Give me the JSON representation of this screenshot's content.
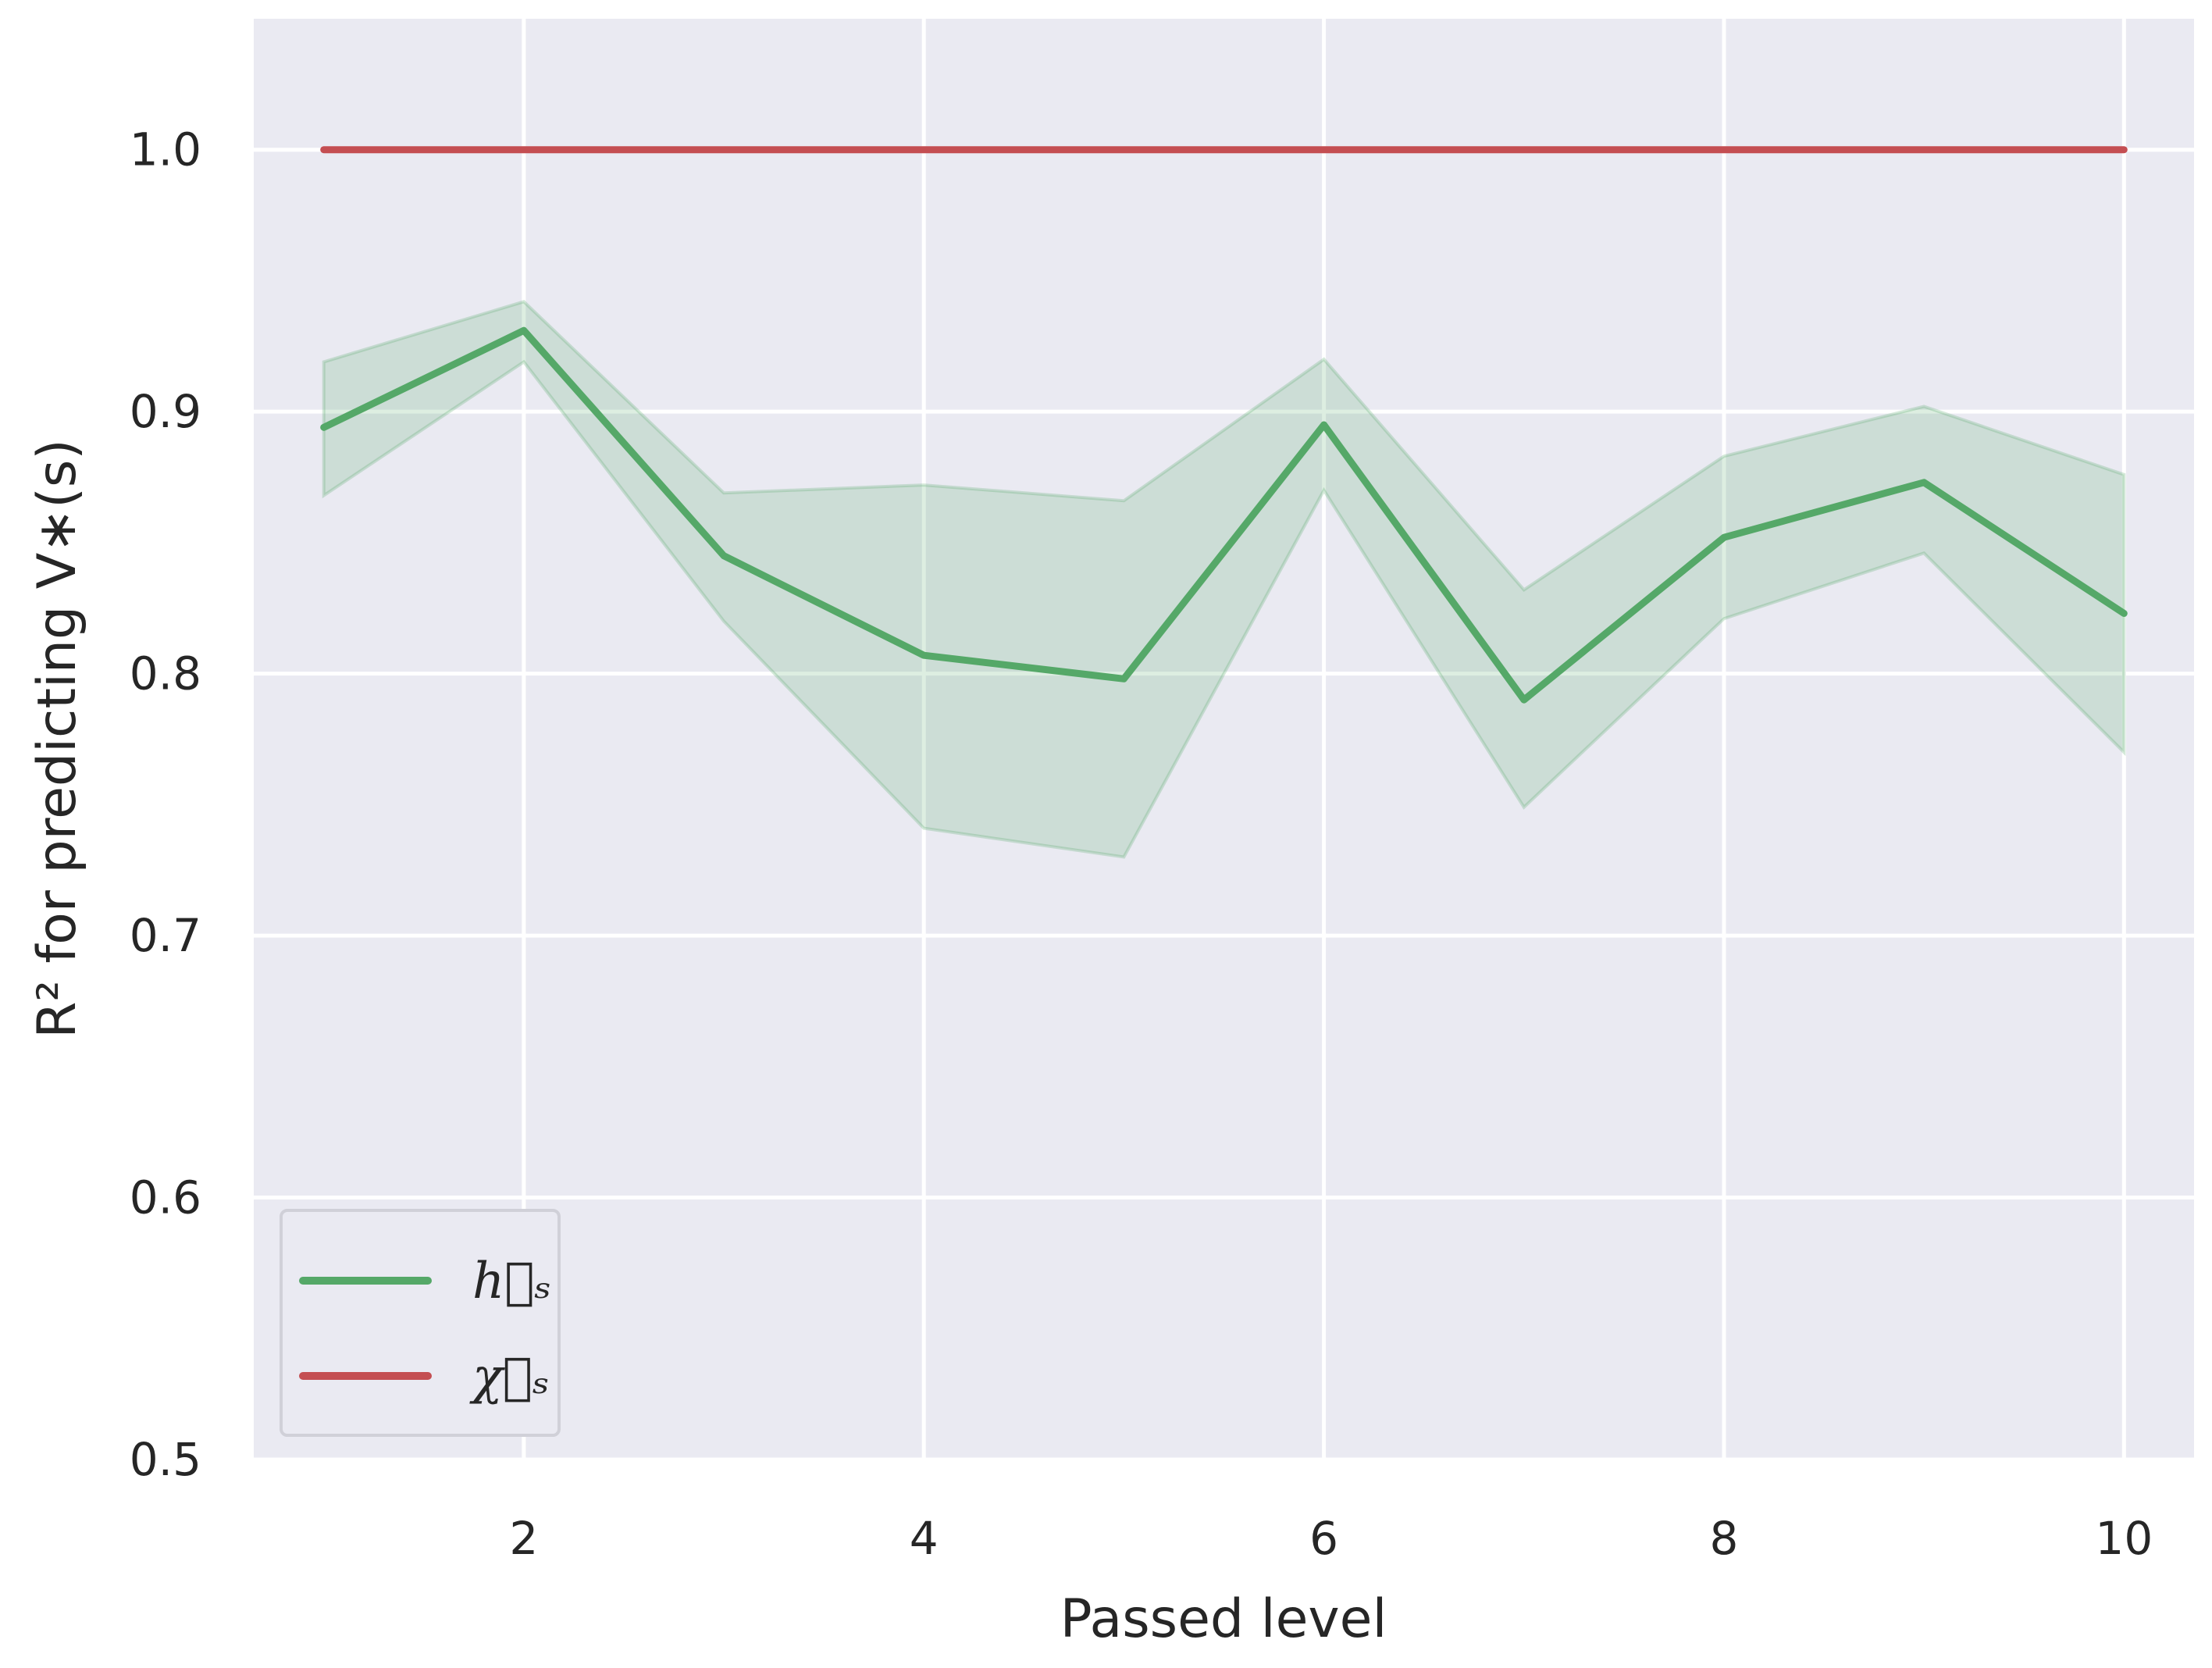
{
  "chart_data": {
    "type": "line",
    "xlabel": "Passed level",
    "ylabel": "R² for predicting V∗(s)",
    "xlim": [
      0.65,
      10.35
    ],
    "ylim": [
      0.5,
      1.05
    ],
    "x_ticks": [
      "2",
      "4",
      "6",
      "8",
      "10"
    ],
    "y_ticks": [
      "0.5",
      "0.6",
      "0.7",
      "0.8",
      "0.9",
      "1.0"
    ],
    "grid": true,
    "legend_position": "lower-left",
    "x": [
      1,
      2,
      3,
      4,
      5,
      6,
      7,
      8,
      9,
      10
    ],
    "series": [
      {
        "name": "h⃗ₛ",
        "color": "#55a868",
        "values": [
          0.894,
          0.931,
          0.845,
          0.807,
          0.798,
          0.895,
          0.79,
          0.852,
          0.873,
          0.823
        ],
        "band_lower": [
          0.868,
          0.919,
          0.82,
          0.741,
          0.73,
          0.87,
          0.749,
          0.821,
          0.846,
          0.77
        ],
        "band_upper": [
          0.919,
          0.942,
          0.869,
          0.872,
          0.866,
          0.92,
          0.832,
          0.883,
          0.902,
          0.876
        ]
      },
      {
        "name": "χ⃗ₛ",
        "color": "#c44e52",
        "values": [
          1.0,
          1.0,
          1.0,
          1.0,
          1.0,
          1.0,
          1.0,
          1.0,
          1.0,
          1.0
        ]
      }
    ],
    "colors": {
      "background": "#eaeaf2",
      "grid": "#ffffff",
      "band": "#55a868"
    }
  }
}
